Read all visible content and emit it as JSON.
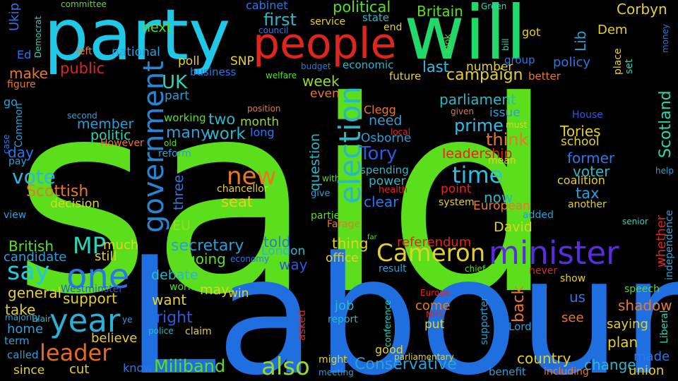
{
  "words": [
    {
      "text": "said",
      "color": "#5bde1b"
    },
    {
      "text": "Labour",
      "color": "#1f6fe0"
    },
    {
      "text": "party",
      "color": "#1ec8e6"
    },
    {
      "text": "will",
      "color": "#21d96b"
    },
    {
      "text": "people",
      "color": "#e0261c"
    },
    {
      "text": "minister",
      "color": "#5a2be0"
    },
    {
      "text": "Cameron",
      "color": "#e6d024"
    },
    {
      "text": "one",
      "color": "#2a78e8"
    },
    {
      "text": "year",
      "color": "#2bb0d8"
    },
    {
      "text": "leader",
      "color": "#e86a1e"
    },
    {
      "text": "government",
      "color": "#2486d4"
    },
    {
      "text": "election",
      "color": "#28b8c8"
    },
    {
      "text": "say",
      "color": "#1ec8e6"
    },
    {
      "text": "MP",
      "color": "#2ad6b8"
    },
    {
      "text": "new",
      "color": "#e87a1e"
    },
    {
      "text": "also",
      "color": "#9ad82a"
    },
    {
      "text": "Conservative",
      "color": "#2aa0d8"
    },
    {
      "text": "Miliband",
      "color": "#5bde1b"
    },
    {
      "text": "time",
      "color": "#29c0e8"
    },
    {
      "text": "Tory",
      "color": "#2a5ae0"
    },
    {
      "text": "vote",
      "color": "#28b8e8"
    },
    {
      "text": "campaign",
      "color": "#e6d024"
    },
    {
      "text": "Scottish",
      "color": "#e8782a"
    },
    {
      "text": "UK",
      "color": "#2ad6b8"
    },
    {
      "text": "political",
      "color": "#5bde1b"
    },
    {
      "text": "first",
      "color": "#2ab8c8"
    },
    {
      "text": "Britain",
      "color": "#5bde1b"
    },
    {
      "text": "Corbyn",
      "color": "#e6d024"
    },
    {
      "text": "Ukip",
      "color": "#2a78e8"
    },
    {
      "text": "cabinet",
      "color": "#2a78e8"
    },
    {
      "text": "committee",
      "color": "#5bde1b"
    },
    {
      "text": "Democrat",
      "color": "#2ad6b8"
    },
    {
      "text": "Green",
      "color": "#2ad6b8"
    },
    {
      "text": "money",
      "color": "#2a78e8"
    },
    {
      "text": "Ed",
      "color": "#2a78e8"
    },
    {
      "text": "left",
      "color": "#e8782a"
    },
    {
      "text": "national",
      "color": "#2aa0d8"
    },
    {
      "text": "next",
      "color": "#5bde1b"
    },
    {
      "text": "service",
      "color": "#e6d024"
    },
    {
      "text": "state",
      "color": "#2ab8c8"
    },
    {
      "text": "council",
      "color": "#2a78e8"
    },
    {
      "text": "end",
      "color": "#e6d024"
    },
    {
      "text": "got",
      "color": "#e6d024"
    },
    {
      "text": "Lib",
      "color": "#2aa0d8"
    },
    {
      "text": "Dem",
      "color": "#e6d024"
    },
    {
      "text": "look",
      "color": "#5bde1b"
    },
    {
      "text": "bill",
      "color": "#2ad6b8"
    },
    {
      "text": "make",
      "color": "#e8782a"
    },
    {
      "text": "public",
      "color": "#e0261c"
    },
    {
      "text": "poll",
      "color": "#e6d024"
    },
    {
      "text": "SNP",
      "color": "#e6d024"
    },
    {
      "text": "business",
      "color": "#2a78e8"
    },
    {
      "text": "welfare",
      "color": "#5bde1b"
    },
    {
      "text": "budget",
      "color": "#2a78e8"
    },
    {
      "text": "economic",
      "color": "#2ab8c8"
    },
    {
      "text": "last",
      "color": "#29c0e8"
    },
    {
      "text": "number",
      "color": "#e6d024"
    },
    {
      "text": "group",
      "color": "#2a78e8"
    },
    {
      "text": "policy",
      "color": "#2a78e8"
    },
    {
      "text": "set",
      "color": "#2ad6b8"
    },
    {
      "text": "place",
      "color": "#e6d024"
    },
    {
      "text": "figure",
      "color": "#e8782a"
    },
    {
      "text": "go",
      "color": "#2aa0d8"
    },
    {
      "text": "Common",
      "color": "#2aa0d8"
    },
    {
      "text": "case",
      "color": "#2a78e8"
    },
    {
      "text": "part",
      "color": "#2aa0d8"
    },
    {
      "text": "week",
      "color": "#9ad82a"
    },
    {
      "text": "even",
      "color": "#e87a1e"
    },
    {
      "text": "future",
      "color": "#e6d024"
    },
    {
      "text": "better",
      "color": "#e8782a"
    },
    {
      "text": "parliament",
      "color": "#2ab8c8"
    },
    {
      "text": "issue",
      "color": "#2aa0d8"
    },
    {
      "text": "given",
      "color": "#e8782a"
    },
    {
      "text": "must",
      "color": "#e6d024"
    },
    {
      "text": "position",
      "color": "#e8782a"
    },
    {
      "text": "Clegg",
      "color": "#e8782a"
    },
    {
      "text": "second",
      "color": "#2aa0d8"
    },
    {
      "text": "member",
      "color": "#2aa0d8"
    },
    {
      "text": "working",
      "color": "#5bde1b"
    },
    {
      "text": "two",
      "color": "#2ab8c8"
    },
    {
      "text": "month",
      "color": "#9ad82a"
    },
    {
      "text": "need",
      "color": "#2aa0d8"
    },
    {
      "text": "local",
      "color": "#e0261c"
    },
    {
      "text": "prime",
      "color": "#29c0e8"
    },
    {
      "text": "House",
      "color": "#2a5ae0"
    },
    {
      "text": "Scotland",
      "color": "#2ad6b8"
    },
    {
      "text": "politic",
      "color": "#2ad6b8"
    },
    {
      "text": "many",
      "color": "#2aa0d8"
    },
    {
      "text": "work",
      "color": "#2ab8c8"
    },
    {
      "text": "long",
      "color": "#2a78e8"
    },
    {
      "text": "Osborne",
      "color": "#2aa0d8"
    },
    {
      "text": "think",
      "color": "#e8782a"
    },
    {
      "text": "Tories",
      "color": "#e6d024"
    },
    {
      "text": "school",
      "color": "#e6d024"
    },
    {
      "text": "However",
      "color": "#e8782a"
    },
    {
      "text": "old",
      "color": "#5bde1b"
    },
    {
      "text": "reform",
      "color": "#2aa0d8"
    },
    {
      "text": "question",
      "color": "#2ab8c8"
    },
    {
      "text": "leadership",
      "color": "#e0261c"
    },
    {
      "text": "former",
      "color": "#2a78e8"
    },
    {
      "text": "day",
      "color": "#2a78e8"
    },
    {
      "text": "pay",
      "color": "#2aa0d8"
    },
    {
      "text": "mean",
      "color": "#e6d024"
    },
    {
      "text": "spending",
      "color": "#2ab8c8"
    },
    {
      "text": "voter",
      "color": "#2ab8c8"
    },
    {
      "text": "help",
      "color": "#2aa0d8"
    },
    {
      "text": "three",
      "color": "#2a78e8"
    },
    {
      "text": "within",
      "color": "#5bde1b"
    },
    {
      "text": "power",
      "color": "#2ab8c8"
    },
    {
      "text": "coalition",
      "color": "#e6d024"
    },
    {
      "text": "health",
      "color": "#e0261c"
    },
    {
      "text": "point",
      "color": "#e0261c"
    },
    {
      "text": "chancellor",
      "color": "#e6d024"
    },
    {
      "text": "give",
      "color": "#2aa0d8"
    },
    {
      "text": "tax",
      "color": "#2aa0d8"
    },
    {
      "text": "now",
      "color": "#2ab8c8"
    },
    {
      "text": "decision",
      "color": "#e6d024"
    },
    {
      "text": "seat",
      "color": "#e6d024"
    },
    {
      "text": "clear",
      "color": "#2a78e8"
    },
    {
      "text": "system",
      "color": "#e6d024"
    },
    {
      "text": "European",
      "color": "#e8782a"
    },
    {
      "text": "another",
      "color": "#e6d024"
    },
    {
      "text": "view",
      "color": "#2aa0d8"
    },
    {
      "text": "EU",
      "color": "#9ad82a"
    },
    {
      "text": "parties",
      "color": "#5bde1b"
    },
    {
      "text": "added",
      "color": "#2aa0d8"
    },
    {
      "text": "Farage",
      "color": "#e8782a"
    },
    {
      "text": "David",
      "color": "#e6d024"
    },
    {
      "text": "senior",
      "color": "#2ad6b8"
    },
    {
      "text": "whether",
      "color": "#e0261c"
    },
    {
      "text": "independence",
      "color": "#2aa0d8"
    },
    {
      "text": "British",
      "color": "#5bde1b"
    },
    {
      "text": "much",
      "color": "#e6d024"
    },
    {
      "text": "secretary",
      "color": "#2aa0d8"
    },
    {
      "text": "told",
      "color": "#2a78e8"
    },
    {
      "text": "far",
      "color": "#5bde1b"
    },
    {
      "text": "referendum",
      "color": "#e0261c"
    },
    {
      "text": "thing",
      "color": "#e6d024"
    },
    {
      "text": "London",
      "color": "#2ab8c8"
    },
    {
      "text": "candidate",
      "color": "#2aa0d8"
    },
    {
      "text": "still",
      "color": "#e6d024"
    },
    {
      "text": "going",
      "color": "#5bde1b"
    },
    {
      "text": "economy",
      "color": "#2a78e8"
    },
    {
      "text": "way",
      "color": "#2a5ae0"
    },
    {
      "text": "office",
      "color": "#e6d024"
    },
    {
      "text": "result",
      "color": "#2aa0d8"
    },
    {
      "text": "chief",
      "color": "#5bde1b"
    },
    {
      "text": "never",
      "color": "#e0261c"
    },
    {
      "text": "show",
      "color": "#e6d024"
    },
    {
      "text": "debate",
      "color": "#2ab8c8"
    },
    {
      "text": "general",
      "color": "#e6d024"
    },
    {
      "text": "Westminster",
      "color": "#2a5ae0"
    },
    {
      "text": "world",
      "color": "#5bde1b"
    },
    {
      "text": "may",
      "color": "#e6d024"
    },
    {
      "text": "win",
      "color": "#e6d024"
    },
    {
      "text": "us",
      "color": "#2a78e8"
    },
    {
      "text": "speech",
      "color": "#5bde1b"
    },
    {
      "text": "support",
      "color": "#e6d024"
    },
    {
      "text": "want",
      "color": "#e6d024"
    },
    {
      "text": "Europe",
      "color": "#e0261c"
    },
    {
      "text": "back",
      "color": "#e8782a"
    },
    {
      "text": "shadow",
      "color": "#e8782a"
    },
    {
      "text": "take",
      "color": "#e6d024"
    },
    {
      "text": "Blair",
      "color": "#2ab8c8"
    },
    {
      "text": "majority",
      "color": "#2aa0d8"
    },
    {
      "text": "right",
      "color": "#2a5ae0"
    },
    {
      "text": "job",
      "color": "#2ab8c8"
    },
    {
      "text": "come",
      "color": "#e87a1e"
    },
    {
      "text": "NHS",
      "color": "#e0261c"
    },
    {
      "text": "see",
      "color": "#e8782a"
    },
    {
      "text": "saying",
      "color": "#e6d024"
    },
    {
      "text": "home",
      "color": "#2aa0d8"
    },
    {
      "text": "ye",
      "color": "#2aa0d8"
    },
    {
      "text": "police",
      "color": "#2ab8c8"
    },
    {
      "text": "claim",
      "color": "#e6d024"
    },
    {
      "text": "report",
      "color": "#2ab8c8"
    },
    {
      "text": "asked",
      "color": "#e0261c"
    },
    {
      "text": "conference",
      "color": "#2ad6b8"
    },
    {
      "text": "put",
      "color": "#e6d024"
    },
    {
      "text": "supporter",
      "color": "#2aa0d8"
    },
    {
      "text": "Lord",
      "color": "#2aa0d8"
    },
    {
      "text": "term",
      "color": "#2aa0d8"
    },
    {
      "text": "believe",
      "color": "#e6d024"
    },
    {
      "text": "plan",
      "color": "#e6d024"
    },
    {
      "text": "Liberal",
      "color": "#2ad6b8"
    },
    {
      "text": "good",
      "color": "#e6d024"
    },
    {
      "text": "country",
      "color": "#e6d024"
    },
    {
      "text": "made",
      "color": "#2a78e8"
    },
    {
      "text": "called",
      "color": "#2aa0d8"
    },
    {
      "text": "parliamentary",
      "color": "#e6d024"
    },
    {
      "text": "change",
      "color": "#2ab8c8"
    },
    {
      "text": "might",
      "color": "#e6d024"
    },
    {
      "text": "since",
      "color": "#e6d024"
    },
    {
      "text": "cut",
      "color": "#e6d024"
    },
    {
      "text": "know",
      "color": "#2a78e8"
    },
    {
      "text": "meeting",
      "color": "#2aa0d8"
    },
    {
      "text": "benefit",
      "color": "#2aa0d8"
    },
    {
      "text": "including",
      "color": "#e8782a"
    },
    {
      "text": "union",
      "color": "#e6d024"
    }
  ]
}
